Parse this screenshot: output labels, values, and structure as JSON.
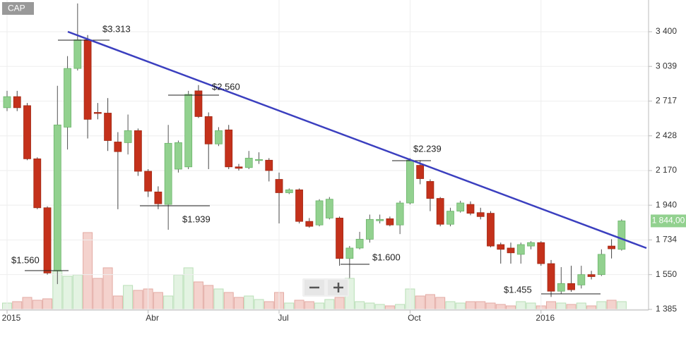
{
  "chart_data": {
    "type": "candlestick",
    "label": "CAP",
    "categories": [
      "2015",
      null,
      null,
      null,
      null,
      null,
      null,
      null,
      null,
      null,
      null,
      null,
      null,
      null,
      "Abr",
      null,
      null,
      null,
      null,
      null,
      null,
      null,
      null,
      null,
      null,
      null,
      null,
      "Jul",
      null,
      null,
      null,
      null,
      null,
      null,
      null,
      null,
      null,
      null,
      null,
      null,
      "Oct",
      null,
      null,
      null,
      null,
      null,
      null,
      null,
      null,
      null,
      null,
      null,
      null,
      "2016",
      null,
      null,
      null,
      null,
      null,
      null,
      null,
      null
    ],
    "open": [
      2659,
      2756,
      2677,
      2254,
      1924,
      1569,
      2497,
      3019,
      3312,
      2619,
      2613,
      2380,
      2375,
      2469,
      2165,
      2025,
      1945,
      2180,
      2196,
      2808,
      2584,
      2365,
      2475,
      2196,
      2191,
      2244,
      2244,
      2109,
      2020,
      2039,
      1841,
      1820,
      1861,
      1861,
      1633,
      1689,
      1738,
      1845,
      1857,
      1820,
      1954,
      2207,
      2095,
      1983,
      1824,
      1903,
      1945,
      1894,
      1890,
      1708,
      1689,
      1655,
      1700,
      1719,
      1606,
      1469,
      1506,
      1499,
      1550,
      1550,
      1700,
      1682
    ],
    "high": [
      2808,
      2808,
      2700,
      2265,
      1933,
      2854,
      3142,
      3725,
      3363,
      2700,
      2743,
      2457,
      2601,
      2486,
      2180,
      2062,
      2515,
      2391,
      2808,
      2861,
      2619,
      2497,
      2515,
      2217,
      2312,
      2302,
      2259,
      2156,
      2048,
      2048,
      1861,
      1978,
      1992,
      1870,
      1700,
      1780,
      1882,
      1882,
      1870,
      1968,
      2259,
      2244,
      2109,
      1992,
      1924,
      1968,
      1964,
      1924,
      1903,
      1719,
      1719,
      1719,
      1727,
      1727,
      1625,
      1588,
      1595,
      1595,
      1569,
      1682,
      1738,
      1853
    ],
    "low": [
      2630,
      2630,
      2244,
      1915,
      1550,
      1503,
      2323,
      2999,
      2407,
      2561,
      2312,
      1915,
      2286,
      2133,
      1992,
      1915,
      1792,
      2156,
      2180,
      2572,
      2180,
      2349,
      2180,
      2170,
      2180,
      2217,
      2095,
      1829,
      2011,
      1829,
      1804,
      1812,
      1853,
      1595,
      1533,
      1682,
      1719,
      1829,
      1812,
      1767,
      1945,
      2076,
      1903,
      1812,
      1812,
      1894,
      1878,
      1853,
      1693,
      1606,
      1606,
      1606,
      1682,
      1595,
      1442,
      1456,
      1466,
      1482,
      1526,
      1543,
      1633,
      1675
    ],
    "close": [
      2756,
      2659,
      2254,
      1924,
      1558,
      2515,
      3019,
      3312,
      2561,
      2613,
      2391,
      2307,
      2469,
      2165,
      2030,
      1949,
      2370,
      2375,
      2776,
      2584,
      2365,
      2469,
      2196,
      2186,
      2259,
      2249,
      2170,
      2020,
      2039,
      1841,
      1812,
      1968,
      1978,
      1633,
      1689,
      1738,
      1853,
      1853,
      1820,
      1954,
      2244,
      2114,
      1983,
      1824,
      1903,
      1954,
      1890,
      1870,
      1700,
      1682,
      1663,
      1708,
      1719,
      1606,
      1469,
      1506,
      1476,
      1550,
      1540,
      1655,
      1685,
      1844
    ],
    "volume": [
      10,
      12,
      18,
      14,
      16,
      55,
      48,
      50,
      110,
      45,
      60,
      20,
      35,
      28,
      30,
      25,
      20,
      50,
      60,
      40,
      35,
      30,
      25,
      18,
      20,
      15,
      12,
      25,
      10,
      14,
      12,
      10,
      15,
      18,
      45,
      12,
      10,
      8,
      6,
      8,
      30,
      20,
      22,
      18,
      12,
      10,
      12,
      12,
      10,
      8,
      6,
      12,
      10,
      6,
      12,
      10,
      8,
      10,
      6,
      12,
      14,
      12
    ],
    "up_color": "#92d18f",
    "down_color": "#c4311b",
    "ylim": [
      1382,
      3767
    ],
    "log_scale": true,
    "yticks": [
      {
        "value": 1385,
        "label": "1 385"
      },
      {
        "value": 1550,
        "label": "1 550"
      },
      {
        "value": 1734,
        "label": "1 734"
      },
      {
        "value": 1940,
        "label": "1 940"
      },
      {
        "value": 2170,
        "label": "2 170"
      },
      {
        "value": 2428,
        "label": "2 428"
      },
      {
        "value": 2717,
        "label": "2 717"
      },
      {
        "value": 3039,
        "label": "3 039"
      },
      {
        "value": 3400,
        "label": "3 400"
      }
    ],
    "grid": true,
    "last_price_label": "1 844,00",
    "annotations": [
      "$3.313",
      "$2.560",
      "$1.939",
      "$1.560",
      "$2.239",
      "$1.600",
      "$1.455"
    ]
  }
}
